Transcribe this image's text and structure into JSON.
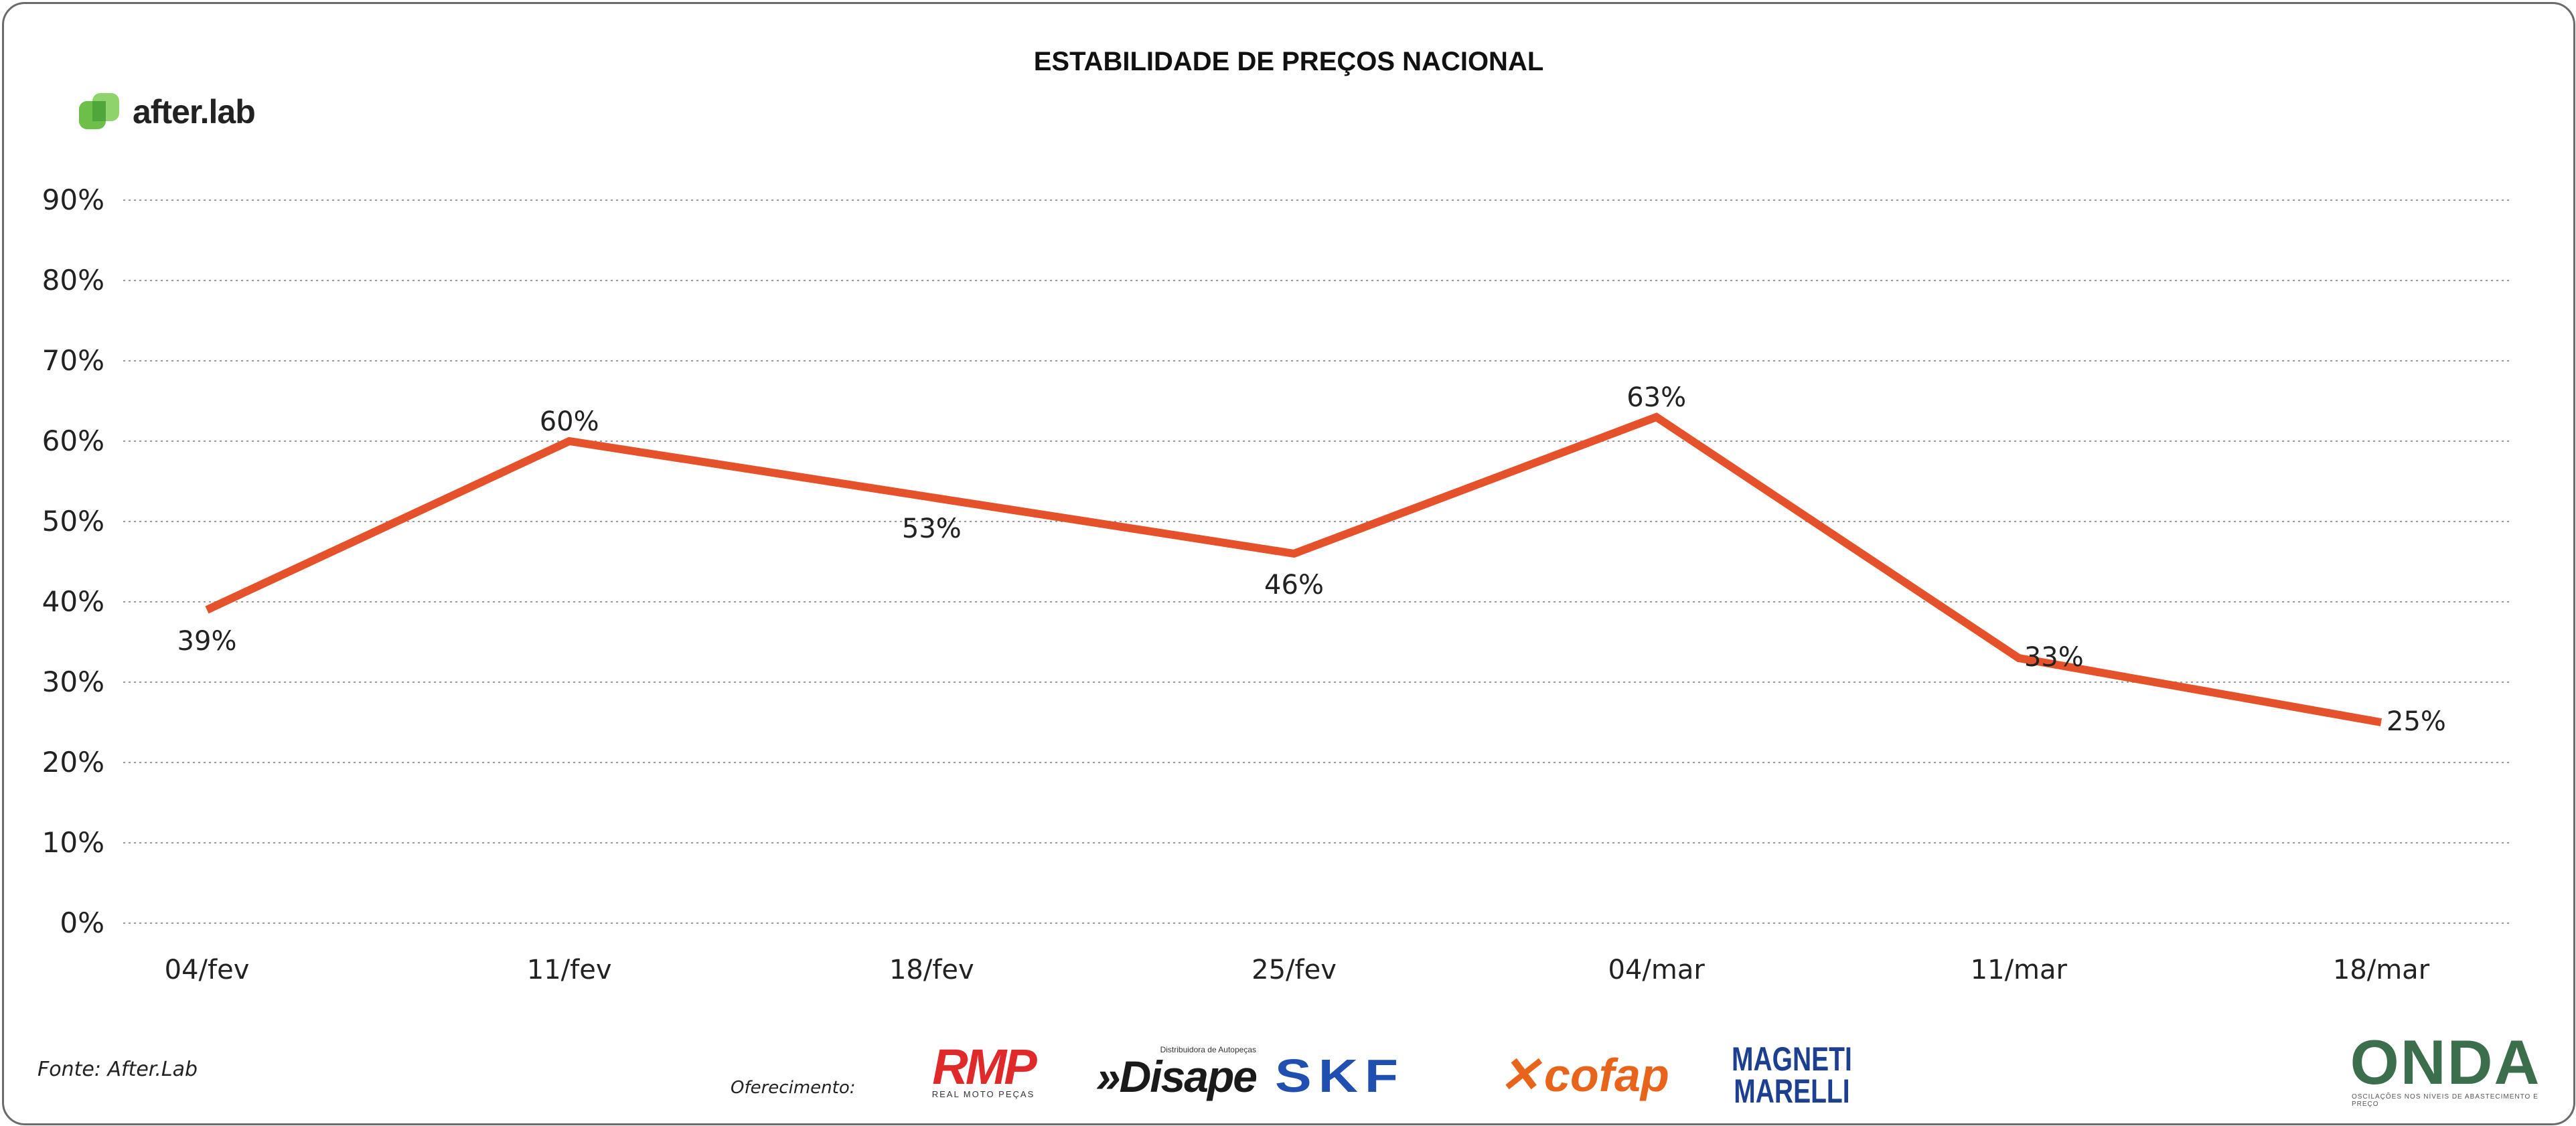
{
  "chart_data": {
    "type": "line",
    "title": "ESTABILIDADE DE PREÇOS NACIONAL",
    "categories": [
      "04/fev",
      "11/fev",
      "18/fev",
      "25/fev",
      "04/mar",
      "11/mar",
      "18/mar"
    ],
    "series": [
      {
        "values": [
          39,
          60,
          53,
          46,
          63,
          33,
          25
        ],
        "labels": [
          "39%",
          "60%",
          "53%",
          "46%",
          "63%",
          "33%",
          "25%"
        ],
        "color": "#e5512a"
      }
    ],
    "yticks": [
      "0%",
      "10%",
      "20%",
      "30%",
      "40%",
      "50%",
      "60%",
      "70%",
      "80%",
      "90%"
    ],
    "ylim": [
      0,
      90
    ],
    "grid": "dotted horizontal",
    "legend": "none"
  },
  "brand": {
    "name": "after.lab",
    "icon": "afterlab-logo-icon",
    "color": "#6cc04a"
  },
  "footer": {
    "source": "Fonte: After.Lab",
    "sponsor_label": "Oferecimento:",
    "sponsors": {
      "rmp": {
        "name": "RMP",
        "tagline": "REAL MOTO PEÇAS"
      },
      "disape": {
        "name": "»Disape",
        "tagline": "Distribuidora de Autopeças"
      },
      "skf": {
        "name": "SKF"
      },
      "cofap": {
        "name": "cofap"
      },
      "magneti": {
        "line1": "MAGNETI",
        "line2": "MARELLI"
      },
      "onda": {
        "name": "ONDA",
        "tagline": "OSCILAÇÕES NOS NÍVEIS DE ABASTECIMENTO E PREÇO"
      }
    }
  }
}
